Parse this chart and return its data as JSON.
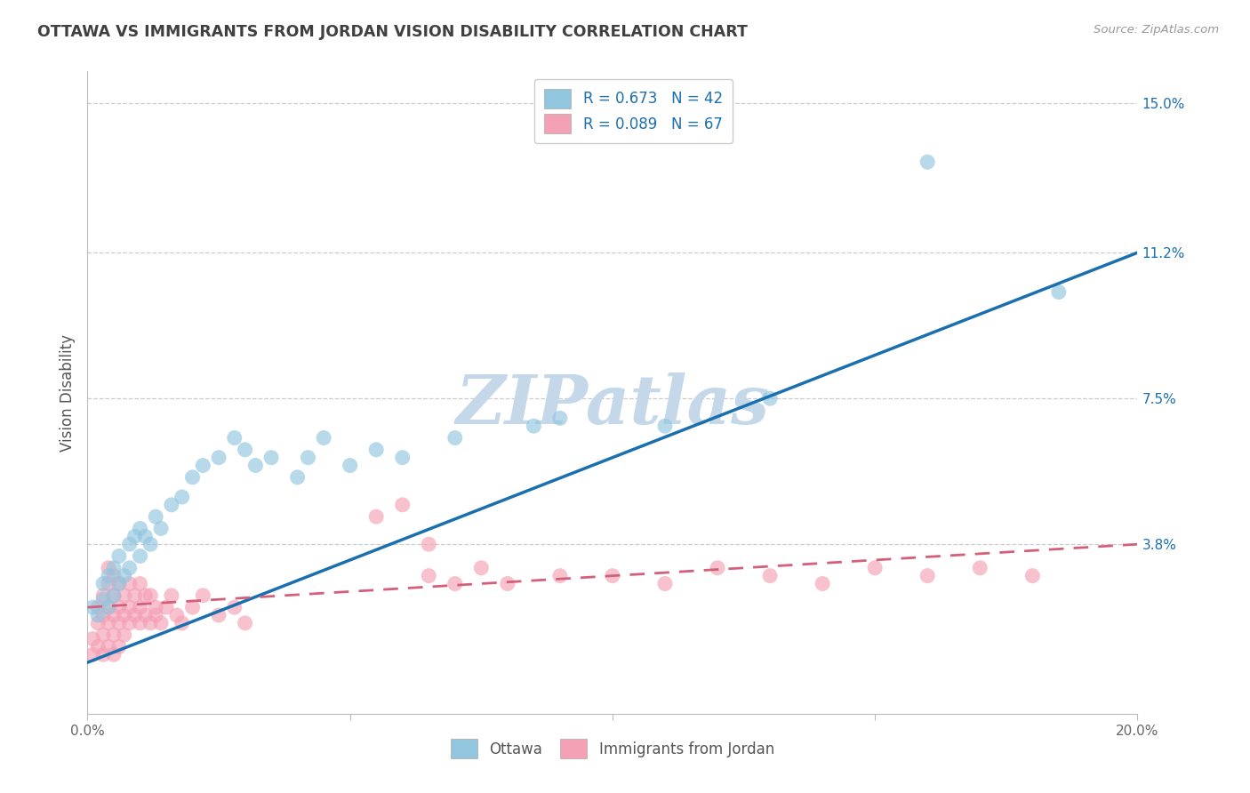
{
  "title": "OTTAWA VS IMMIGRANTS FROM JORDAN VISION DISABILITY CORRELATION CHART",
  "source": "Source: ZipAtlas.com",
  "ylabel": "Vision Disability",
  "legend_label_1": "Ottawa",
  "legend_label_2": "Immigrants from Jordan",
  "r1": 0.673,
  "n1": 42,
  "r2": 0.089,
  "n2": 67,
  "xlim": [
    0.0,
    0.2
  ],
  "ylim": [
    -0.005,
    0.158
  ],
  "yticks": [
    0.038,
    0.075,
    0.112,
    0.15
  ],
  "ytick_labels": [
    "3.8%",
    "7.5%",
    "11.2%",
    "15.0%"
  ],
  "xticks": [
    0.0,
    0.05,
    0.1,
    0.15,
    0.2
  ],
  "xtick_labels": [
    "0.0%",
    "",
    "",
    "",
    "20.0%"
  ],
  "color_ottawa": "#92c5de",
  "color_jordan": "#f4a0b5",
  "color_line_ottawa": "#1a6faf",
  "color_line_jordan": "#d45f7a",
  "background_color": "#ffffff",
  "grid_color": "#cccccc",
  "watermark": "ZIPatlas",
  "watermark_color": "#c5d8ea",
  "ottawa_line_x0": 0.0,
  "ottawa_line_y0": 0.008,
  "ottawa_line_x1": 0.2,
  "ottawa_line_y1": 0.112,
  "jordan_line_x0": 0.0,
  "jordan_line_y0": 0.022,
  "jordan_line_x1": 0.2,
  "jordan_line_y1": 0.038,
  "ottawa_x": [
    0.001,
    0.002,
    0.003,
    0.003,
    0.004,
    0.004,
    0.005,
    0.005,
    0.006,
    0.006,
    0.007,
    0.008,
    0.008,
    0.009,
    0.01,
    0.01,
    0.011,
    0.012,
    0.013,
    0.014,
    0.016,
    0.018,
    0.02,
    0.022,
    0.025,
    0.028,
    0.03,
    0.032,
    0.035,
    0.04,
    0.042,
    0.045,
    0.05,
    0.055,
    0.06,
    0.07,
    0.085,
    0.09,
    0.11,
    0.13,
    0.16,
    0.185
  ],
  "ottawa_y": [
    0.022,
    0.02,
    0.024,
    0.028,
    0.022,
    0.03,
    0.025,
    0.032,
    0.028,
    0.035,
    0.03,
    0.032,
    0.038,
    0.04,
    0.035,
    0.042,
    0.04,
    0.038,
    0.045,
    0.042,
    0.048,
    0.05,
    0.055,
    0.058,
    0.06,
    0.065,
    0.062,
    0.058,
    0.06,
    0.055,
    0.06,
    0.065,
    0.058,
    0.062,
    0.06,
    0.065,
    0.068,
    0.07,
    0.068,
    0.075,
    0.135,
    0.102
  ],
  "jordan_x": [
    0.001,
    0.001,
    0.002,
    0.002,
    0.002,
    0.003,
    0.003,
    0.003,
    0.003,
    0.004,
    0.004,
    0.004,
    0.004,
    0.004,
    0.005,
    0.005,
    0.005,
    0.005,
    0.005,
    0.006,
    0.006,
    0.006,
    0.006,
    0.007,
    0.007,
    0.007,
    0.008,
    0.008,
    0.008,
    0.009,
    0.009,
    0.01,
    0.01,
    0.01,
    0.011,
    0.011,
    0.012,
    0.012,
    0.013,
    0.013,
    0.014,
    0.015,
    0.016,
    0.017,
    0.018,
    0.02,
    0.022,
    0.025,
    0.028,
    0.03,
    0.055,
    0.06,
    0.065,
    0.065,
    0.07,
    0.075,
    0.08,
    0.09,
    0.1,
    0.11,
    0.12,
    0.13,
    0.14,
    0.15,
    0.16,
    0.17,
    0.18
  ],
  "jordan_y": [
    0.01,
    0.014,
    0.012,
    0.018,
    0.022,
    0.01,
    0.015,
    0.02,
    0.025,
    0.012,
    0.018,
    0.022,
    0.028,
    0.032,
    0.01,
    0.015,
    0.02,
    0.025,
    0.03,
    0.012,
    0.018,
    0.022,
    0.028,
    0.015,
    0.02,
    0.025,
    0.018,
    0.022,
    0.028,
    0.02,
    0.025,
    0.018,
    0.022,
    0.028,
    0.02,
    0.025,
    0.018,
    0.025,
    0.02,
    0.022,
    0.018,
    0.022,
    0.025,
    0.02,
    0.018,
    0.022,
    0.025,
    0.02,
    0.022,
    0.018,
    0.045,
    0.048,
    0.03,
    0.038,
    0.028,
    0.032,
    0.028,
    0.03,
    0.03,
    0.028,
    0.032,
    0.03,
    0.028,
    0.032,
    0.03,
    0.032,
    0.03
  ]
}
